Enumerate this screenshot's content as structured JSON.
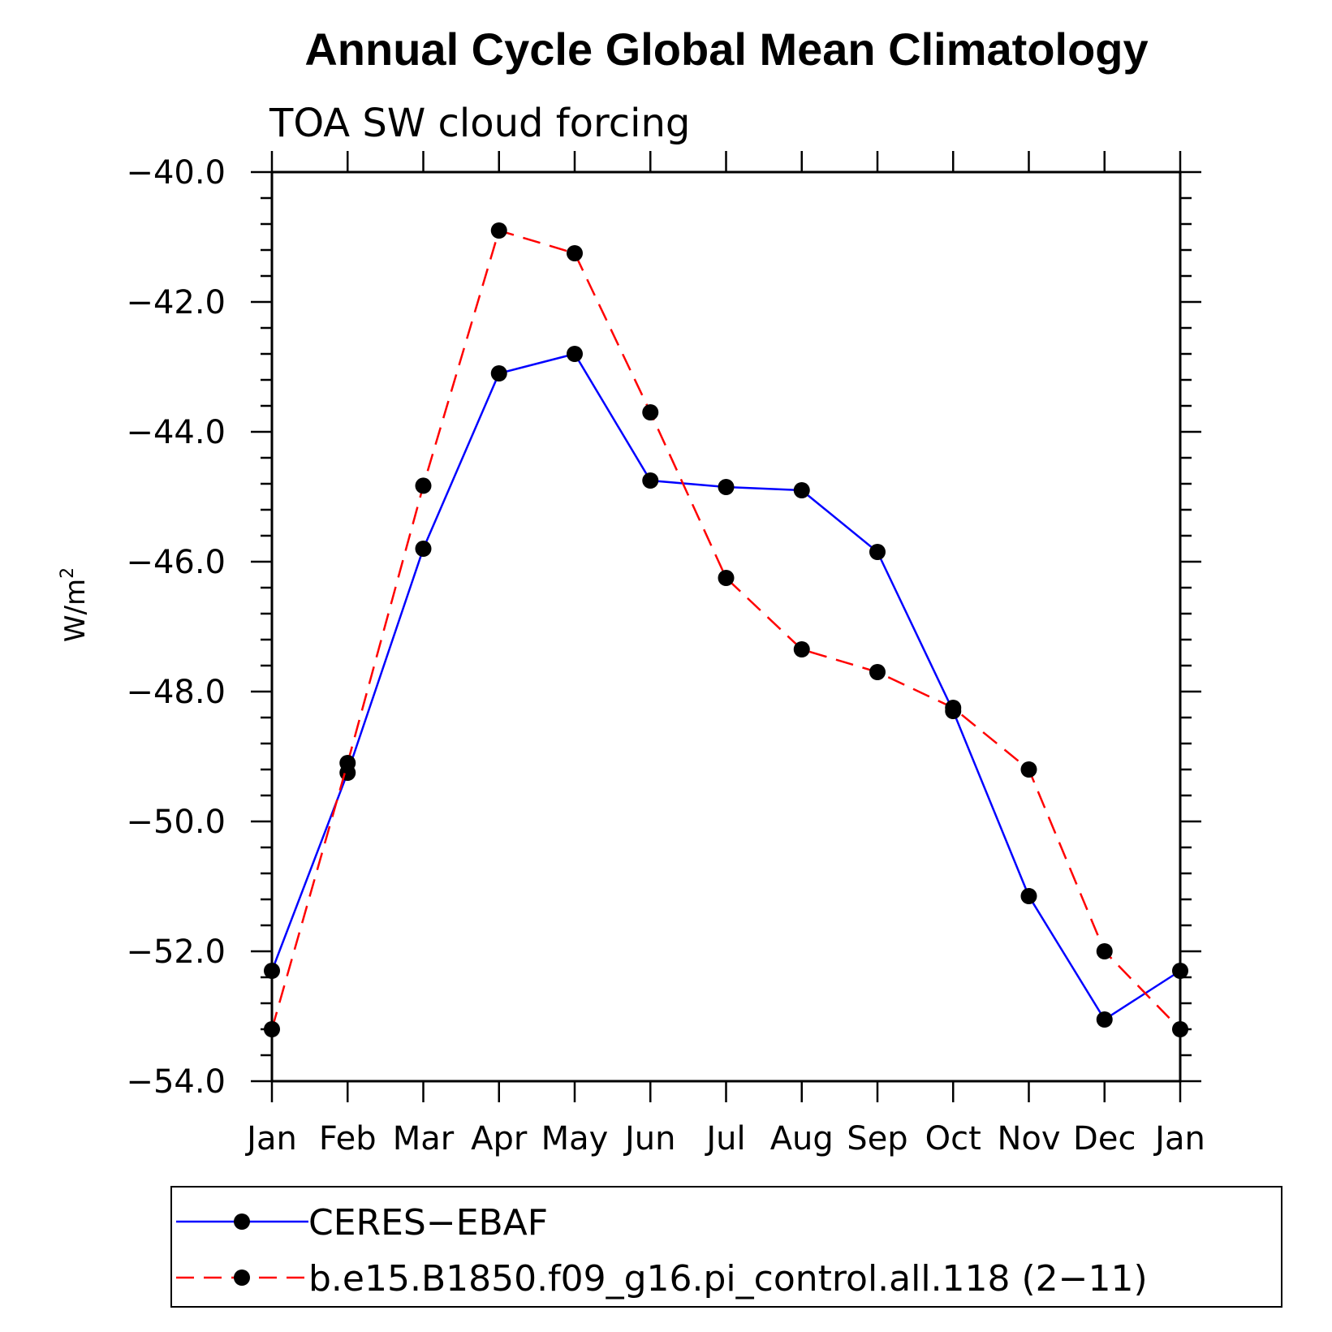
{
  "chart_data": {
    "type": "line",
    "title": "Annual Cycle Global Mean Climatology",
    "subtitle": "TOA SW cloud forcing",
    "ylabel_base": "W/m",
    "ylabel_sup": "2",
    "xlabel": "",
    "categories": [
      "Jan",
      "Feb",
      "Mar",
      "Apr",
      "May",
      "Jun",
      "Jul",
      "Aug",
      "Sep",
      "Oct",
      "Nov",
      "Dec",
      "Jan"
    ],
    "ylim": [
      -54.0,
      -40.0
    ],
    "yticks": [
      "-40.0",
      "-42.0",
      "-44.0",
      "-46.0",
      "-48.0",
      "-50.0",
      "-52.0",
      "-54.0"
    ],
    "legend_position": "bottom",
    "grid": false,
    "series": [
      {
        "name": "CERES-EBAF",
        "color": "#0000ff",
        "line_style": "solid",
        "marker": "filled-circle",
        "values": [
          -52.3,
          -49.25,
          -45.8,
          -43.1,
          -42.8,
          -44.75,
          -44.85,
          -44.9,
          -45.85,
          -48.3,
          -51.15,
          -53.05,
          -52.3
        ]
      },
      {
        "name": "b.e15.B1850.f09_g16.pi_control.all.118 (2-11)",
        "color": "#ff0000",
        "line_style": "dashed",
        "marker": "filled-circle",
        "values": [
          -53.2,
          -49.1,
          -44.83,
          -40.9,
          -41.25,
          -43.7,
          -46.25,
          -47.35,
          -47.7,
          -48.25,
          -49.2,
          -52.0,
          -53.2
        ]
      }
    ]
  },
  "legend": {
    "entries": [
      "CERES−EBAF",
      "b.e15.B1850.f09_g16.pi_control.all.118 (2−11)"
    ]
  }
}
